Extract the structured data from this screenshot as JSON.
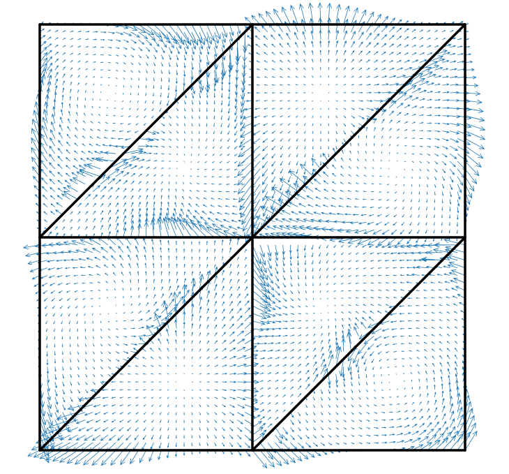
{
  "figure": {
    "type": "quiver-on-triangulated-mesh",
    "mesh": {
      "line_color": "#000000",
      "vertices": [
        [
          0,
          0
        ],
        [
          1,
          0
        ],
        [
          2,
          0
        ],
        [
          0,
          1
        ],
        [
          1,
          1
        ],
        [
          2,
          1
        ],
        [
          0,
          2
        ],
        [
          1,
          2
        ],
        [
          2,
          2
        ]
      ],
      "triangles": [
        [
          0,
          1,
          4
        ],
        [
          0,
          4,
          3
        ],
        [
          1,
          2,
          5
        ],
        [
          1,
          5,
          4
        ],
        [
          3,
          4,
          7
        ],
        [
          3,
          7,
          6
        ],
        [
          4,
          5,
          8
        ],
        [
          4,
          8,
          7
        ]
      ]
    },
    "arrows": {
      "color": "#1f77b4",
      "samples_per_unit": 28
    }
  }
}
